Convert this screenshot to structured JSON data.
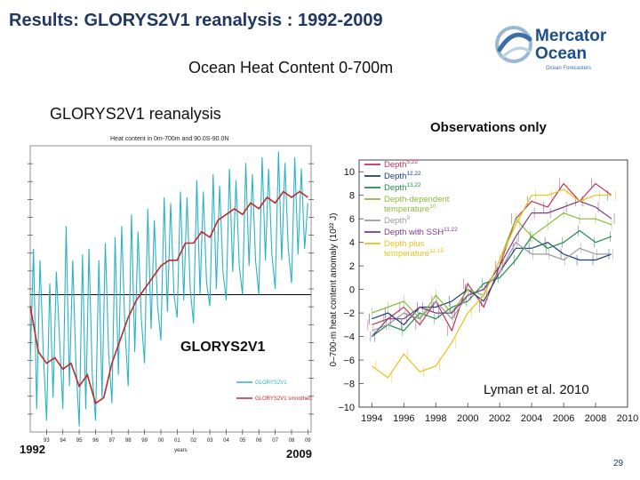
{
  "slide": {
    "title": "Results: GLORYS2V1 reanalysis :  1992-2009",
    "subtitle": "Ocean Heat Content  0-700m",
    "left_heading": "GLORYS2V1 reanalysis",
    "right_heading": "Observations only",
    "page_number": "29"
  },
  "logo": {
    "line1": "Mercator",
    "line2": "Ocean",
    "tagline": "Ocean Forecasters"
  },
  "colors": {
    "title": "#1f3864",
    "glorys_monthly": "#2ab3c4",
    "glorys_smoothed": "#c0282b",
    "zero_line": "#000000",
    "series": [
      "#c0335a",
      "#1f3a7a",
      "#1e8a4a",
      "#8cb83a",
      "#9a9a9a",
      "#7a3a8a",
      "#e8c218"
    ]
  },
  "chart_data": [
    {
      "type": "line",
      "title": "Heat content in 0m-700m and 90.0S-90.0N",
      "overlay_label": "GLORYS2V1",
      "start_label": "1992",
      "end_label": "2009",
      "axis_label": "years",
      "x_tick_labels": [
        "93",
        "94",
        "95",
        "96",
        "97",
        "98",
        "99",
        "00",
        "01",
        "02",
        "03",
        "04",
        "05",
        "06",
        "07",
        "08",
        "09"
      ],
      "xlim": [
        1992,
        2009.2
      ],
      "ylim": [
        -1.2,
        1.3
      ],
      "series": [
        {
          "name": "GLORYS2V1",
          "description": "monthly",
          "x": [
            1992.0,
            1992.2,
            1992.4,
            1992.6,
            1992.8,
            1993.0,
            1993.2,
            1993.4,
            1993.6,
            1993.8,
            1994.0,
            1994.2,
            1994.4,
            1994.6,
            1994.8,
            1995.0,
            1995.2,
            1995.4,
            1995.6,
            1995.8,
            1996.0,
            1996.2,
            1996.4,
            1996.6,
            1996.8,
            1997.0,
            1997.2,
            1997.4,
            1997.6,
            1997.8,
            1998.0,
            1998.2,
            1998.4,
            1998.6,
            1998.8,
            1999.0,
            1999.2,
            1999.4,
            1999.6,
            1999.8,
            2000.0,
            2000.2,
            2000.4,
            2000.6,
            2000.8,
            2001.0,
            2001.2,
            2001.4,
            2001.6,
            2001.8,
            2002.0,
            2002.2,
            2002.4,
            2002.6,
            2002.8,
            2003.0,
            2003.2,
            2003.4,
            2003.6,
            2003.8,
            2004.0,
            2004.2,
            2004.4,
            2004.6,
            2004.8,
            2005.0,
            2005.2,
            2005.4,
            2005.6,
            2005.8,
            2006.0,
            2006.2,
            2006.4,
            2006.6,
            2006.8,
            2007.0,
            2007.2,
            2007.4,
            2007.6,
            2007.8,
            2008.0,
            2008.2,
            2008.4,
            2008.6,
            2008.8,
            2009.0
          ],
          "values": [
            -0.6,
            0.4,
            -1.0,
            0.3,
            -0.5,
            -1.1,
            0.1,
            -0.9,
            0.2,
            -0.4,
            -1.0,
            0.6,
            -0.8,
            0.3,
            -0.6,
            -1.15,
            0.35,
            -1.0,
            0.4,
            -0.7,
            -1.1,
            0.3,
            -0.9,
            0.45,
            -0.5,
            -0.95,
            0.5,
            -0.7,
            0.6,
            -0.3,
            -0.8,
            0.7,
            -0.5,
            0.55,
            -0.2,
            -0.6,
            0.75,
            -0.3,
            0.65,
            -0.1,
            -0.4,
            0.85,
            -0.15,
            0.8,
            0.0,
            -0.2,
            0.9,
            -0.05,
            0.85,
            0.05,
            -0.25,
            1.0,
            0.0,
            0.9,
            0.1,
            -0.1,
            1.05,
            0.05,
            0.95,
            0.2,
            -0.05,
            1.1,
            0.2,
            1.0,
            0.25,
            0.0,
            1.15,
            0.25,
            1.05,
            0.3,
            0.0,
            1.2,
            0.3,
            1.1,
            0.35,
            0.05,
            1.25,
            0.3,
            1.15,
            0.4,
            0.1,
            1.2,
            0.35,
            1.1,
            0.4,
            0.8
          ]
        },
        {
          "name": "GLORYS2V1 smoothed",
          "description": "annual running mean",
          "x": [
            1992.0,
            1992.5,
            1993.0,
            1993.5,
            1994.0,
            1994.5,
            1995.0,
            1995.5,
            1996.0,
            1996.5,
            1997.0,
            1997.5,
            1998.0,
            1998.5,
            1999.0,
            1999.5,
            2000.0,
            2000.5,
            2001.0,
            2001.5,
            2002.0,
            2002.5,
            2003.0,
            2003.5,
            2004.0,
            2004.5,
            2005.0,
            2005.5,
            2006.0,
            2006.5,
            2007.0,
            2007.5,
            2008.0,
            2008.5,
            2009.0
          ],
          "values": [
            -0.1,
            -0.5,
            -0.6,
            -0.55,
            -0.65,
            -0.6,
            -0.8,
            -0.7,
            -0.95,
            -0.9,
            -0.6,
            -0.4,
            -0.2,
            -0.05,
            0.05,
            0.15,
            0.25,
            0.3,
            0.3,
            0.45,
            0.45,
            0.55,
            0.5,
            0.65,
            0.7,
            0.75,
            0.7,
            0.8,
            0.75,
            0.85,
            0.8,
            0.9,
            0.85,
            0.9,
            0.85
          ]
        }
      ]
    },
    {
      "type": "line",
      "title": "Observations only",
      "credit": "Lyman et al. 2010",
      "ylabel": "0–700-m heat content anomaly (10²² J)",
      "xlim": [
        1993.2,
        2010
      ],
      "ylim": [
        -10,
        11
      ],
      "x_ticks": [
        1994,
        1996,
        1998,
        2000,
        2002,
        2004,
        2006,
        2008,
        2010
      ],
      "x_tick_labels": [
        "1994",
        "1996",
        "1998",
        "2000",
        "2002",
        "2004",
        "2006",
        "2008",
        "2010"
      ],
      "y_ticks": [
        -10,
        -8,
        -6,
        -4,
        -2,
        0,
        2,
        4,
        6,
        8,
        10
      ],
      "y_tick_labels": [
        "−10",
        "−8",
        "−6",
        "−4",
        "−2",
        "0",
        "2",
        "4",
        "6",
        "8",
        "10"
      ],
      "x": [
        1994,
        1995,
        1996,
        1997,
        1998,
        1999,
        2000,
        2001,
        2002,
        2003,
        2004,
        2005,
        2006,
        2007,
        2008,
        2009
      ],
      "series": [
        {
          "name": "Depth",
          "ref": "5,22",
          "values": [
            -3.0,
            -2.5,
            -1.5,
            -3.0,
            -1.0,
            -3.5,
            0.5,
            -1.5,
            2.0,
            6.0,
            7.5,
            7.0,
            9.0,
            7.5,
            9.0,
            8.0
          ]
        },
        {
          "name": "Depth",
          "ref": "12,22",
          "values": [
            -2.5,
            -2.0,
            -3.0,
            -1.5,
            -1.5,
            -1.0,
            0.0,
            -1.0,
            1.5,
            3.5,
            3.5,
            4.0,
            3.0,
            2.5,
            2.5,
            3.0
          ]
        },
        {
          "name": "Depth",
          "ref": "13,22",
          "values": [
            -4.0,
            -3.0,
            -3.5,
            -2.0,
            -2.5,
            -1.5,
            -1.0,
            0.5,
            1.0,
            2.5,
            4.5,
            3.5,
            4.0,
            5.0,
            4.0,
            4.5
          ]
        },
        {
          "name": "Depth-dependent temperature",
          "ref": "10",
          "values": [
            -2.0,
            -1.5,
            -1.0,
            -2.5,
            -0.5,
            -2.0,
            0.0,
            -0.5,
            2.5,
            6.0,
            4.5,
            5.5,
            6.5,
            6.0,
            6.0,
            5.5
          ]
        },
        {
          "name": "Depth",
          "ref": "9",
          "values": [
            -3.5,
            -3.0,
            -2.0,
            -2.5,
            -1.0,
            -2.5,
            -0.5,
            0.0,
            1.5,
            4.0,
            3.0,
            3.0,
            2.5,
            3.5,
            3.0,
            3.0
          ]
        },
        {
          "name": "Depth with SSH",
          "ref": "11,22",
          "values": [
            -4.0,
            -2.5,
            -2.5,
            -1.5,
            -2.0,
            -2.0,
            -0.5,
            0.0,
            2.0,
            4.5,
            6.5,
            6.5,
            7.0,
            7.5,
            7.0,
            6.0
          ]
        },
        {
          "name": "Depth plus temperature",
          "ref": "11,15",
          "values": [
            -6.5,
            -7.5,
            -5.5,
            -7.0,
            -6.5,
            -4.5,
            -2.0,
            -0.5,
            2.5,
            5.5,
            8.0,
            8.0,
            8.5,
            7.5,
            8.0,
            8.0
          ]
        }
      ]
    }
  ]
}
